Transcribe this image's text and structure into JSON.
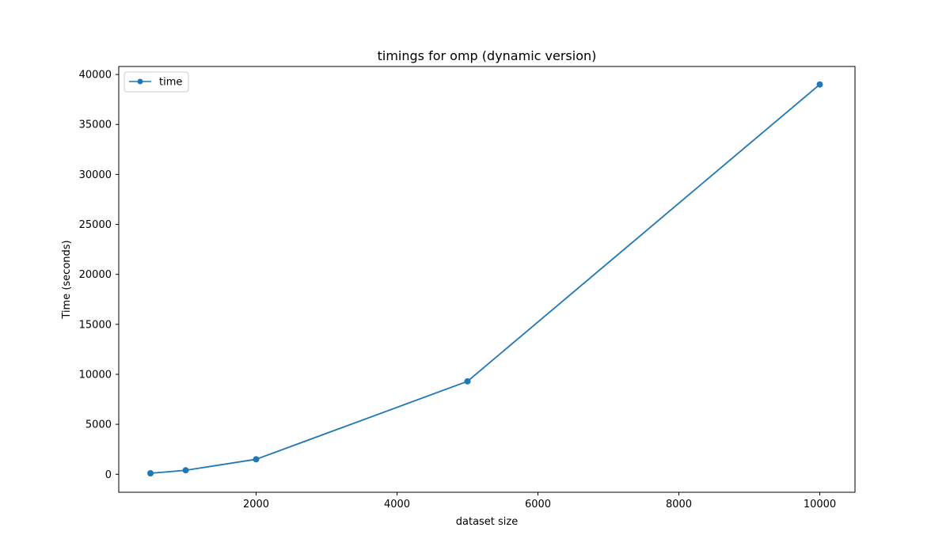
{
  "chart_data": {
    "type": "line",
    "title": "timings for omp (dynamic version)",
    "xlabel": "dataset size",
    "ylabel": "Time (seconds)",
    "xlim": [
      50,
      10500
    ],
    "ylim": [
      -1800,
      40800
    ],
    "xticks": [
      2000,
      4000,
      6000,
      8000,
      10000
    ],
    "yticks": [
      0,
      5000,
      10000,
      15000,
      20000,
      25000,
      30000,
      35000,
      40000
    ],
    "grid": false,
    "legend_position": "top-left",
    "series": [
      {
        "name": "time",
        "color": "#1f77b4",
        "marker": "circle",
        "x": [
          500,
          1000,
          2000,
          5000,
          10000
        ],
        "y": [
          100,
          400,
          1500,
          9300,
          39000
        ]
      }
    ]
  }
}
